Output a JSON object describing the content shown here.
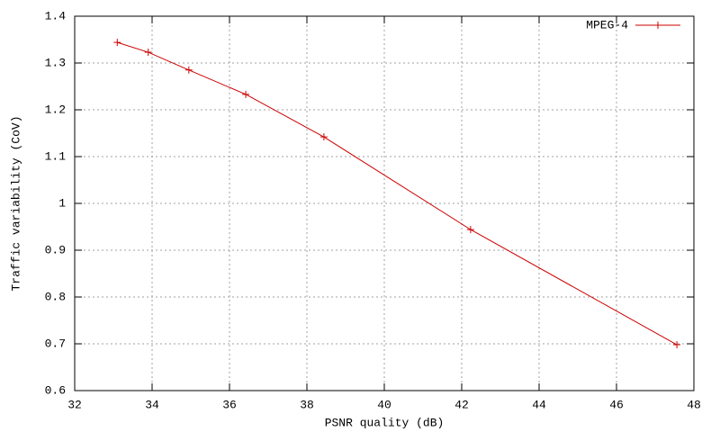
{
  "chart_data": {
    "type": "line",
    "x_label": "PSNR quality (dB)",
    "y_label": "Traffic variability (CoV)",
    "x": [
      33.1,
      33.9,
      34.95,
      36.42,
      38.44,
      42.23,
      47.56
    ],
    "series": [
      {
        "name": "MPEG-4",
        "color": "#cc0000",
        "values": [
          1.344,
          1.323,
          1.285,
          1.233,
          1.142,
          0.944,
          0.698
        ]
      }
    ],
    "xlim": [
      32,
      48
    ],
    "xticks": [
      32,
      34,
      36,
      38,
      40,
      42,
      44,
      46,
      48
    ],
    "ylim": [
      0.6,
      1.4
    ],
    "yticks": [
      0.6,
      0.7,
      0.8,
      0.9,
      1,
      1.1,
      1.2,
      1.3,
      1.4
    ],
    "grid": true,
    "legend": "top-right"
  }
}
